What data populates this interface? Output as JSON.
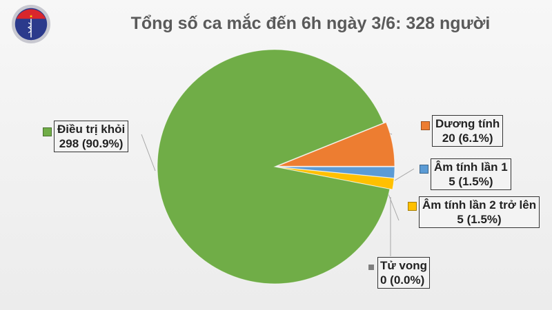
{
  "logo": {
    "text_top": "BỘ Y TẾ",
    "text_bottom": "MINISTRY OF HEALTH"
  },
  "chart_data": {
    "type": "pie",
    "title": "Tổng số ca mắc đến 6h ngày 3/6: 328 người",
    "total": 328,
    "slices": [
      {
        "name": "Điều trị khỏi",
        "value": 298,
        "percent_label": "298 (90.9%)",
        "color": "#70ad47"
      },
      {
        "name": "Dương tính",
        "value": 20,
        "percent_label": "20 (6.1%)",
        "color": "#ed7d31"
      },
      {
        "name": "Âm tính lần 1",
        "value": 5,
        "percent_label": "5 (1.5%)",
        "color": "#5b9bd5"
      },
      {
        "name": "Âm tính lần 2 trở lên",
        "value": 5,
        "percent_label": "5 (1.5%)",
        "color": "#ffc000"
      },
      {
        "name": "Tử vong",
        "value": 0,
        "percent_label": "0 (0.0%)",
        "color": "#7f7f7f"
      }
    ]
  }
}
